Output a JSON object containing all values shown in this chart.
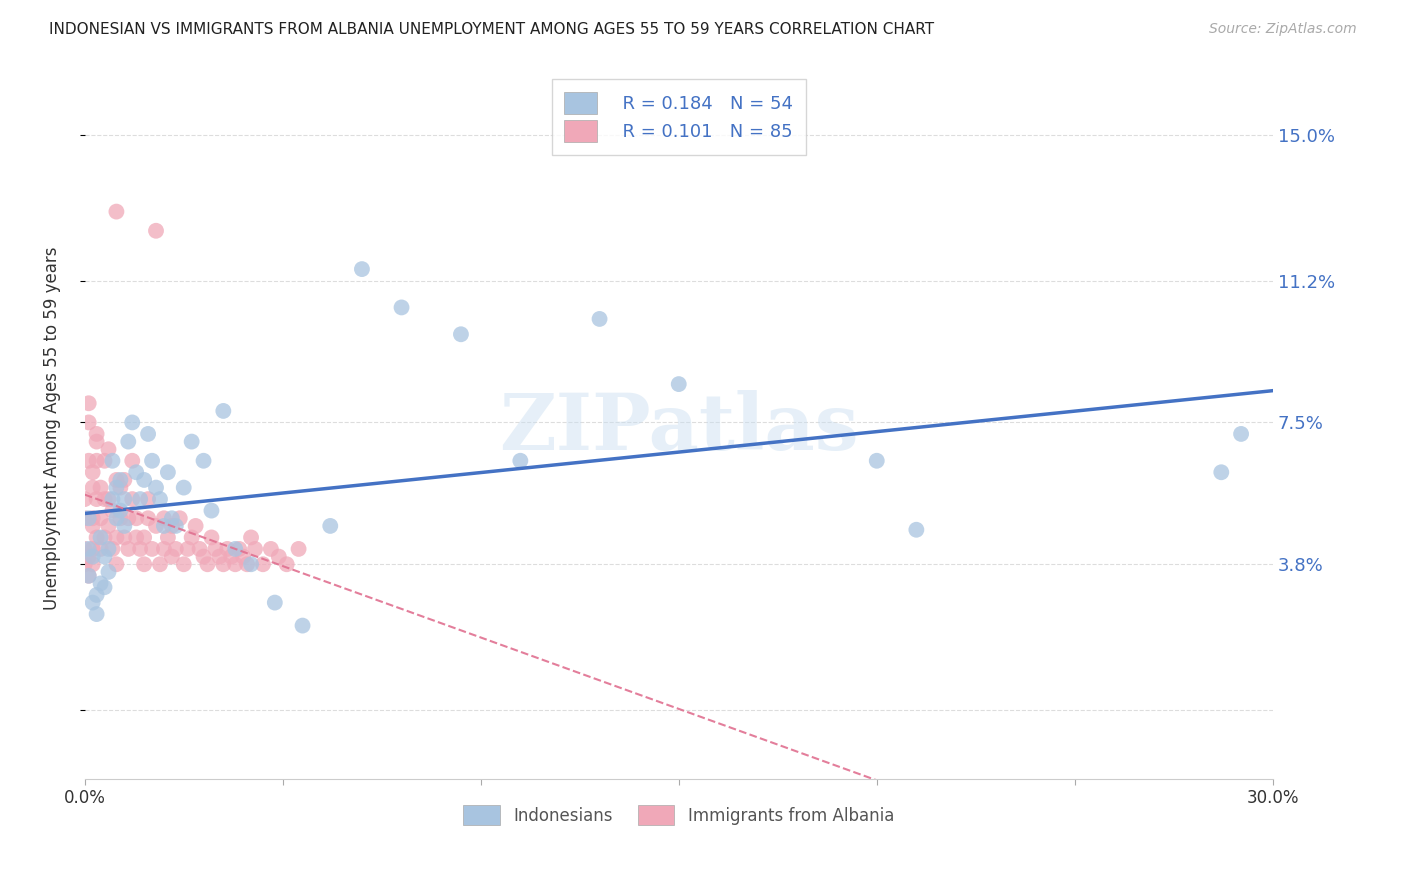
{
  "title": "INDONESIAN VS IMMIGRANTS FROM ALBANIA UNEMPLOYMENT AMONG AGES 55 TO 59 YEARS CORRELATION CHART",
  "source": "Source: ZipAtlas.com",
  "ylabel": "Unemployment Among Ages 55 to 59 years",
  "xlim": [
    0.0,
    0.3
  ],
  "ylim": [
    -0.018,
    0.165
  ],
  "ytick_vals": [
    0.0,
    0.038,
    0.075,
    0.112,
    0.15
  ],
  "ytick_labels_right": [
    "",
    "3.8%",
    "7.5%",
    "11.2%",
    "15.0%"
  ],
  "xtick_vals": [
    0.0,
    0.05,
    0.1,
    0.15,
    0.2,
    0.25,
    0.3
  ],
  "xtick_labels": [
    "0.0%",
    "",
    "",
    "",
    "",
    "",
    "30.0%"
  ],
  "background_color": "#ffffff",
  "grid_color": "#dddddd",
  "watermark": "ZIPatlas",
  "legend_R1": "0.184",
  "legend_N1": "54",
  "legend_R2": "0.101",
  "legend_N2": "85",
  "indonesian_color": "#a8c4e0",
  "albanian_color": "#f0a8b8",
  "line1_color": "#4472c4",
  "line2_color": "#e07090",
  "right_tick_color": "#4472c4",
  "indonesian_x": [
    0.001,
    0.001,
    0.001,
    0.002,
    0.002,
    0.003,
    0.003,
    0.004,
    0.004,
    0.005,
    0.005,
    0.006,
    0.006,
    0.007,
    0.007,
    0.008,
    0.008,
    0.009,
    0.009,
    0.01,
    0.01,
    0.011,
    0.012,
    0.013,
    0.014,
    0.015,
    0.016,
    0.017,
    0.018,
    0.019,
    0.02,
    0.021,
    0.022,
    0.023,
    0.025,
    0.027,
    0.03,
    0.032,
    0.035,
    0.038,
    0.042,
    0.048,
    0.055,
    0.062,
    0.07,
    0.08,
    0.095,
    0.11,
    0.13,
    0.15,
    0.2,
    0.21,
    0.287,
    0.292
  ],
  "indonesian_y": [
    0.05,
    0.042,
    0.035,
    0.04,
    0.028,
    0.03,
    0.025,
    0.045,
    0.033,
    0.04,
    0.032,
    0.042,
    0.036,
    0.065,
    0.055,
    0.05,
    0.058,
    0.052,
    0.06,
    0.048,
    0.055,
    0.07,
    0.075,
    0.062,
    0.055,
    0.06,
    0.072,
    0.065,
    0.058,
    0.055,
    0.048,
    0.062,
    0.05,
    0.048,
    0.058,
    0.07,
    0.065,
    0.052,
    0.078,
    0.042,
    0.038,
    0.028,
    0.022,
    0.048,
    0.115,
    0.105,
    0.098,
    0.065,
    0.102,
    0.085,
    0.065,
    0.047,
    0.062,
    0.072
  ],
  "albanian_x": [
    0.0,
    0.0,
    0.0,
    0.0,
    0.001,
    0.001,
    0.001,
    0.001,
    0.002,
    0.002,
    0.002,
    0.002,
    0.002,
    0.003,
    0.003,
    0.003,
    0.003,
    0.004,
    0.004,
    0.004,
    0.005,
    0.005,
    0.005,
    0.006,
    0.006,
    0.006,
    0.007,
    0.007,
    0.008,
    0.008,
    0.008,
    0.009,
    0.009,
    0.01,
    0.01,
    0.011,
    0.011,
    0.012,
    0.012,
    0.013,
    0.013,
    0.014,
    0.015,
    0.015,
    0.016,
    0.016,
    0.017,
    0.018,
    0.019,
    0.02,
    0.02,
    0.021,
    0.022,
    0.022,
    0.023,
    0.024,
    0.025,
    0.026,
    0.027,
    0.028,
    0.029,
    0.03,
    0.031,
    0.032,
    0.033,
    0.034,
    0.035,
    0.036,
    0.037,
    0.038,
    0.039,
    0.04,
    0.041,
    0.042,
    0.043,
    0.045,
    0.047,
    0.049,
    0.051,
    0.054,
    0.008,
    0.018,
    0.002,
    0.003,
    0.001
  ],
  "albanian_y": [
    0.05,
    0.055,
    0.042,
    0.038,
    0.035,
    0.04,
    0.065,
    0.075,
    0.038,
    0.042,
    0.05,
    0.058,
    0.062,
    0.045,
    0.055,
    0.065,
    0.07,
    0.042,
    0.05,
    0.058,
    0.045,
    0.055,
    0.065,
    0.048,
    0.055,
    0.068,
    0.042,
    0.052,
    0.038,
    0.045,
    0.06,
    0.05,
    0.058,
    0.045,
    0.06,
    0.042,
    0.05,
    0.055,
    0.065,
    0.045,
    0.05,
    0.042,
    0.038,
    0.045,
    0.05,
    0.055,
    0.042,
    0.048,
    0.038,
    0.042,
    0.05,
    0.045,
    0.04,
    0.048,
    0.042,
    0.05,
    0.038,
    0.042,
    0.045,
    0.048,
    0.042,
    0.04,
    0.038,
    0.045,
    0.042,
    0.04,
    0.038,
    0.042,
    0.04,
    0.038,
    0.042,
    0.04,
    0.038,
    0.045,
    0.042,
    0.038,
    0.042,
    0.04,
    0.038,
    0.042,
    0.13,
    0.125,
    0.048,
    0.072,
    0.08
  ]
}
